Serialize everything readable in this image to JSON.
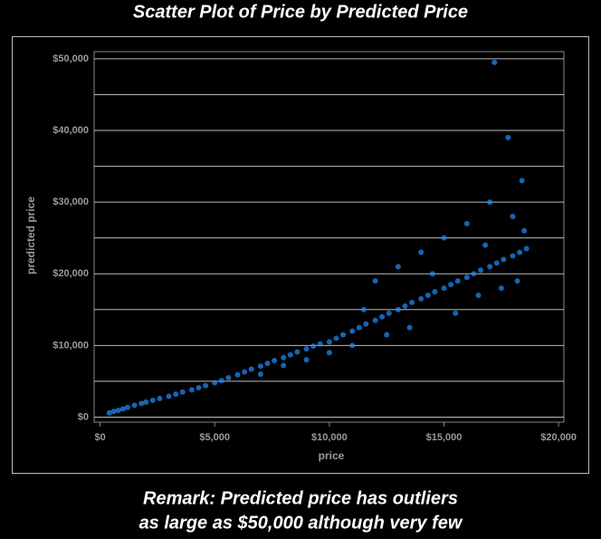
{
  "chart_data": {
    "type": "scatter",
    "title": "Scatter Plot of Price by Predicted Price",
    "xlabel": "price",
    "ylabel": "predicted price",
    "remark": [
      "Remark: Predicted price has outliers",
      "as large as $50,000 although very few"
    ],
    "color": "#1e90ff",
    "xlim": [
      -260,
      20230
    ],
    "ylim": [
      -700,
      51000
    ],
    "xticks": [
      {
        "value": 0,
        "label": "$0"
      },
      {
        "value": 5000,
        "label": "$5,000"
      },
      {
        "value": 10000,
        "label": "$10,000"
      },
      {
        "value": 15000,
        "label": "$15,000"
      },
      {
        "value": 20000,
        "label": "$20,000"
      }
    ],
    "yticks": [
      {
        "value": 0,
        "label": "$0"
      },
      {
        "value": 10000,
        "label": "$10,000"
      },
      {
        "value": 20000,
        "label": "$20,000"
      },
      {
        "value": 30000,
        "label": "$30,000"
      },
      {
        "value": 40000,
        "label": "$40,000"
      },
      {
        "value": 50000,
        "label": "$50,000"
      }
    ],
    "ygrid": [
      0,
      5000,
      10000,
      15000,
      20000,
      25000,
      30000,
      35000,
      40000,
      45000,
      50000
    ],
    "x": [
      400,
      600,
      800,
      1000,
      1200,
      1500,
      1800,
      2000,
      2300,
      2600,
      3000,
      3300,
      3600,
      4000,
      4300,
      4600,
      5000,
      5300,
      5600,
      6000,
      6300,
      6600,
      7000,
      7300,
      7600,
      8000,
      8300,
      8600,
      9000,
      9300,
      9600,
      10000,
      10300,
      10600,
      11000,
      11300,
      11600,
      12000,
      12300,
      12600,
      13000,
      13300,
      13600,
      14000,
      14300,
      14600,
      15000,
      15300,
      15600,
      16000,
      16300,
      16600,
      17000,
      17300,
      17600,
      18000,
      18300,
      18600,
      12000,
      13000,
      14000,
      15000,
      16000,
      17000,
      18000,
      18500,
      16500,
      17500,
      18200,
      17800,
      9000,
      10000,
      11000,
      7000,
      8000,
      17200,
      18400,
      15500,
      13500,
      12500,
      14500,
      16800,
      11500
    ],
    "values": [
      600,
      800,
      950,
      1150,
      1350,
      1650,
      1900,
      2100,
      2350,
      2600,
      2900,
      3200,
      3500,
      3800,
      4100,
      4400,
      4800,
      5100,
      5500,
      5900,
      6300,
      6700,
      7100,
      7500,
      7900,
      8300,
      8700,
      9100,
      9500,
      9900,
      10200,
      10500,
      11000,
      11500,
      12000,
      12500,
      13000,
      13500,
      14000,
      14500,
      15000,
      15500,
      16000,
      16500,
      17000,
      17500,
      18000,
      18500,
      19000,
      19500,
      20000,
      20500,
      21000,
      21500,
      22000,
      22500,
      23000,
      23500,
      19000,
      21000,
      23000,
      25000,
      27000,
      30000,
      28000,
      26000,
      17000,
      18000,
      19000,
      39000,
      8000,
      9000,
      10000,
      6000,
      7200,
      49500,
      33000,
      14500,
      12500,
      11500,
      20000,
      24000,
      15000
    ]
  }
}
